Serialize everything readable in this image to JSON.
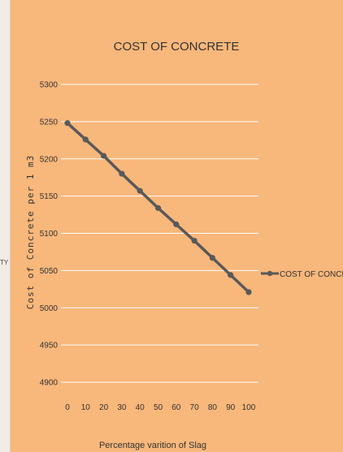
{
  "left_strip": {
    "text": "TY"
  },
  "chart_data": {
    "type": "line",
    "title": "COST OF CONCRETE",
    "xlabel": "Percentage varition of Slag",
    "ylabel": "Cost of Concrete per 1 m3",
    "x": [
      0,
      10,
      20,
      30,
      40,
      50,
      60,
      70,
      80,
      90,
      100
    ],
    "series": [
      {
        "name": "COST OF CONCRETE",
        "values": [
          5248,
          5226,
          5204,
          5180,
          5157,
          5134,
          5112,
          5090,
          5067,
          5044,
          5021
        ]
      }
    ],
    "yticks": [
      4900,
      4950,
      5000,
      5050,
      5100,
      5150,
      5200,
      5250,
      5300
    ],
    "ylim": [
      4900,
      5300
    ],
    "xlim": [
      0,
      100
    ],
    "grid": true,
    "legend_position": "right",
    "colors": {
      "background": "#f8b77b",
      "line": "#595959",
      "grid": "#ffffff"
    }
  }
}
